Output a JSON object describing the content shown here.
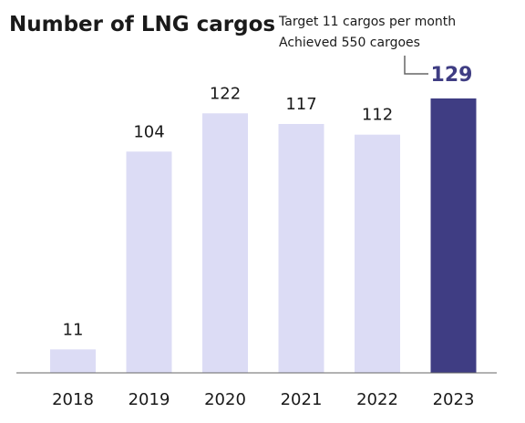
{
  "colors": {
    "bar": "#dcdcf5",
    "highlight_bar": "#3f3d83",
    "highlight_label": "#3f3d83",
    "axis": "#666666",
    "text": "#1a1a1a"
  },
  "chart_data": {
    "type": "bar",
    "title": "Number of LNG cargos",
    "annotation": [
      "Target 11 cargos per month",
      "Achieved 550 cargoes"
    ],
    "categories": [
      "2018",
      "2019",
      "2020",
      "2021",
      "2022",
      "2023"
    ],
    "values": [
      11,
      104,
      122,
      117,
      112,
      129
    ],
    "data_labels": [
      "11",
      "104",
      "122",
      "117",
      "112",
      "129"
    ],
    "highlight_index": 5,
    "xlabel": "",
    "ylabel": "",
    "ylim": [
      0,
      130
    ],
    "grid": false,
    "legend": "none"
  }
}
